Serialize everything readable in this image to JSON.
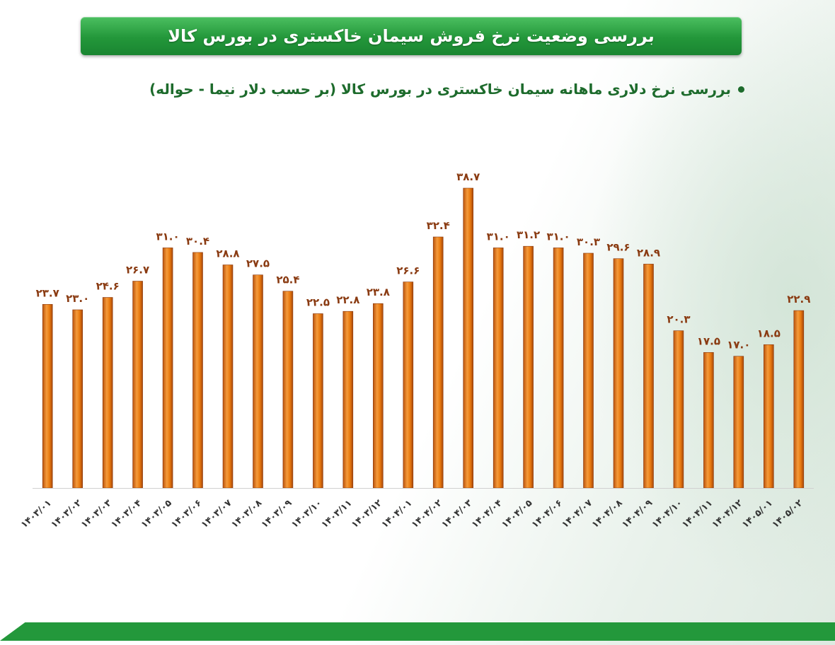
{
  "header": {
    "title": "بررسی وضعیت نرخ فروش سیمان خاکستری در بورس کالا",
    "subtitle": "بررسی نرخ دلاری ماهانه سیمان خاکستری در بورس کالا (بر حسب دلار نیما - حواله)"
  },
  "colors": {
    "bar": "#e8790f",
    "bar_edge": "#8a3b12",
    "title_bg": "#23973a",
    "accent_green": "#1d6b2c"
  },
  "chart_data": {
    "type": "bar",
    "title": "",
    "xlabel": "",
    "ylabel": "",
    "ylim": [
      0,
      40
    ],
    "grid": false,
    "legend": "none",
    "categories": [
      "۱۴۰۳/۰۱",
      "۱۴۰۳/۰۲",
      "۱۴۰۳/۰۳",
      "۱۴۰۳/۰۴",
      "۱۴۰۳/۰۵",
      "۱۴۰۳/۰۶",
      "۱۴۰۳/۰۷",
      "۱۴۰۳/۰۸",
      "۱۴۰۳/۰۹",
      "۱۴۰۳/۱۰",
      "۱۴۰۳/۱۱",
      "۱۴۰۳/۱۲",
      "۱۴۰۴/۰۱",
      "۱۴۰۴/۰۲",
      "۱۴۰۴/۰۳",
      "۱۴۰۴/۰۴",
      "۱۴۰۴/۰۵",
      "۱۴۰۴/۰۶",
      "۱۴۰۴/۰۷",
      "۱۴۰۴/۰۸",
      "۱۴۰۴/۰۹",
      "۱۴۰۴/۱۰",
      "۱۴۰۴/۱۱",
      "۱۴۰۴/۱۲",
      "۱۴۰۵/۰۱",
      "۱۴۰۵/۰۲"
    ],
    "values": [
      23.7,
      23.0,
      24.6,
      26.7,
      31.0,
      30.4,
      28.8,
      27.5,
      25.4,
      22.5,
      22.8,
      23.8,
      26.6,
      32.4,
      38.7,
      31.0,
      31.2,
      31.0,
      30.3,
      29.6,
      28.9,
      20.3,
      17.5,
      17.0,
      18.5,
      22.9
    ],
    "value_labels": [
      "۲۳.۷",
      "۲۳.۰",
      "۲۴.۶",
      "۲۶.۷",
      "۳۱.۰",
      "۳۰.۴",
      "۲۸.۸",
      "۲۷.۵",
      "۲۵.۴",
      "۲۲.۵",
      "۲۲.۸",
      "۲۳.۸",
      "۲۶.۶",
      "۳۲.۴",
      "۳۸.۷",
      "۳۱.۰",
      "۳۱.۲",
      "۳۱.۰",
      "۳۰.۳",
      "۲۹.۶",
      "۲۸.۹",
      "۲۰.۳",
      "۱۷.۵",
      "۱۷.۰",
      "۱۸.۵",
      "۲۲.۹"
    ]
  }
}
